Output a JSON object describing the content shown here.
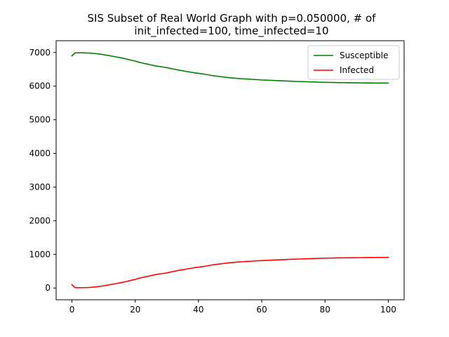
{
  "chart_data": {
    "type": "line",
    "title_line1": "SIS Subset of Real World Graph with p=0.050000, # of",
    "title_line2": "init_infected=100, time_infected=10",
    "xlabel": "",
    "ylabel": "",
    "xlim": [
      -5,
      105
    ],
    "ylim": [
      -350,
      7350
    ],
    "xticks": [
      0,
      20,
      40,
      60,
      80,
      100
    ],
    "yticks": [
      0,
      1000,
      2000,
      3000,
      4000,
      5000,
      6000,
      7000
    ],
    "grid": false,
    "legend_position": "top-right",
    "x": [
      0,
      1,
      2,
      3,
      4,
      5,
      6,
      7,
      8,
      9,
      10,
      11,
      12,
      13,
      14,
      15,
      16,
      17,
      18,
      19,
      20,
      21,
      22,
      23,
      24,
      25,
      26,
      27,
      28,
      29,
      30,
      31,
      32,
      33,
      34,
      35,
      36,
      37,
      38,
      39,
      40,
      41,
      42,
      43,
      44,
      45,
      46,
      47,
      48,
      49,
      50,
      51,
      52,
      53,
      54,
      55,
      56,
      57,
      58,
      59,
      60,
      61,
      62,
      63,
      64,
      65,
      66,
      67,
      68,
      69,
      70,
      71,
      72,
      73,
      74,
      75,
      76,
      77,
      78,
      79,
      80,
      81,
      82,
      83,
      84,
      85,
      86,
      87,
      88,
      89,
      90,
      91,
      92,
      93,
      94,
      95,
      96,
      97,
      98,
      99,
      100
    ],
    "series": [
      {
        "name": "Susceptible",
        "color": "#008000",
        "values": [
          6900,
          6990,
          6992,
          6990,
          6988,
          6985,
          6980,
          6972,
          6962,
          6950,
          6935,
          6918,
          6902,
          6886,
          6868,
          6850,
          6832,
          6810,
          6788,
          6765,
          6745,
          6715,
          6692,
          6672,
          6652,
          6630,
          6610,
          6592,
          6578,
          6565,
          6550,
          6530,
          6510,
          6490,
          6472,
          6456,
          6440,
          6424,
          6408,
          6392,
          6380,
          6368,
          6354,
          6338,
          6320,
          6306,
          6294,
          6282,
          6270,
          6258,
          6248,
          6240,
          6232,
          6225,
          6218,
          6212,
          6208,
          6202,
          6196,
          6190,
          6184,
          6180,
          6176,
          6172,
          6168,
          6164,
          6160,
          6156,
          6152,
          6148,
          6144,
          6140,
          6137,
          6134,
          6131,
          6128,
          6125,
          6122,
          6119,
          6116,
          6113,
          6111,
          6109,
          6107,
          6105,
          6104,
          6103,
          6102,
          6101,
          6100,
          6099,
          6098,
          6097,
          6096,
          6095,
          6094,
          6093,
          6092,
          6092,
          6091,
          6090
        ]
      },
      {
        "name": "Infected",
        "color": "#ff0000",
        "values": [
          100,
          10,
          8,
          10,
          12,
          15,
          20,
          28,
          38,
          50,
          65,
          82,
          98,
          114,
          132,
          150,
          168,
          190,
          212,
          235,
          255,
          285,
          308,
          328,
          348,
          370,
          390,
          408,
          422,
          435,
          450,
          470,
          490,
          510,
          528,
          544,
          560,
          576,
          592,
          608,
          620,
          632,
          646,
          662,
          680,
          694,
          706,
          718,
          730,
          742,
          752,
          760,
          768,
          775,
          782,
          788,
          792,
          798,
          804,
          810,
          816,
          820,
          824,
          828,
          832,
          836,
          840,
          844,
          848,
          852,
          856,
          860,
          863,
          866,
          869,
          872,
          875,
          878,
          881,
          884,
          887,
          889,
          891,
          893,
          895,
          896,
          897,
          898,
          899,
          900,
          901,
          902,
          903,
          904,
          905,
          906,
          907,
          908,
          908,
          909,
          910
        ]
      }
    ]
  }
}
